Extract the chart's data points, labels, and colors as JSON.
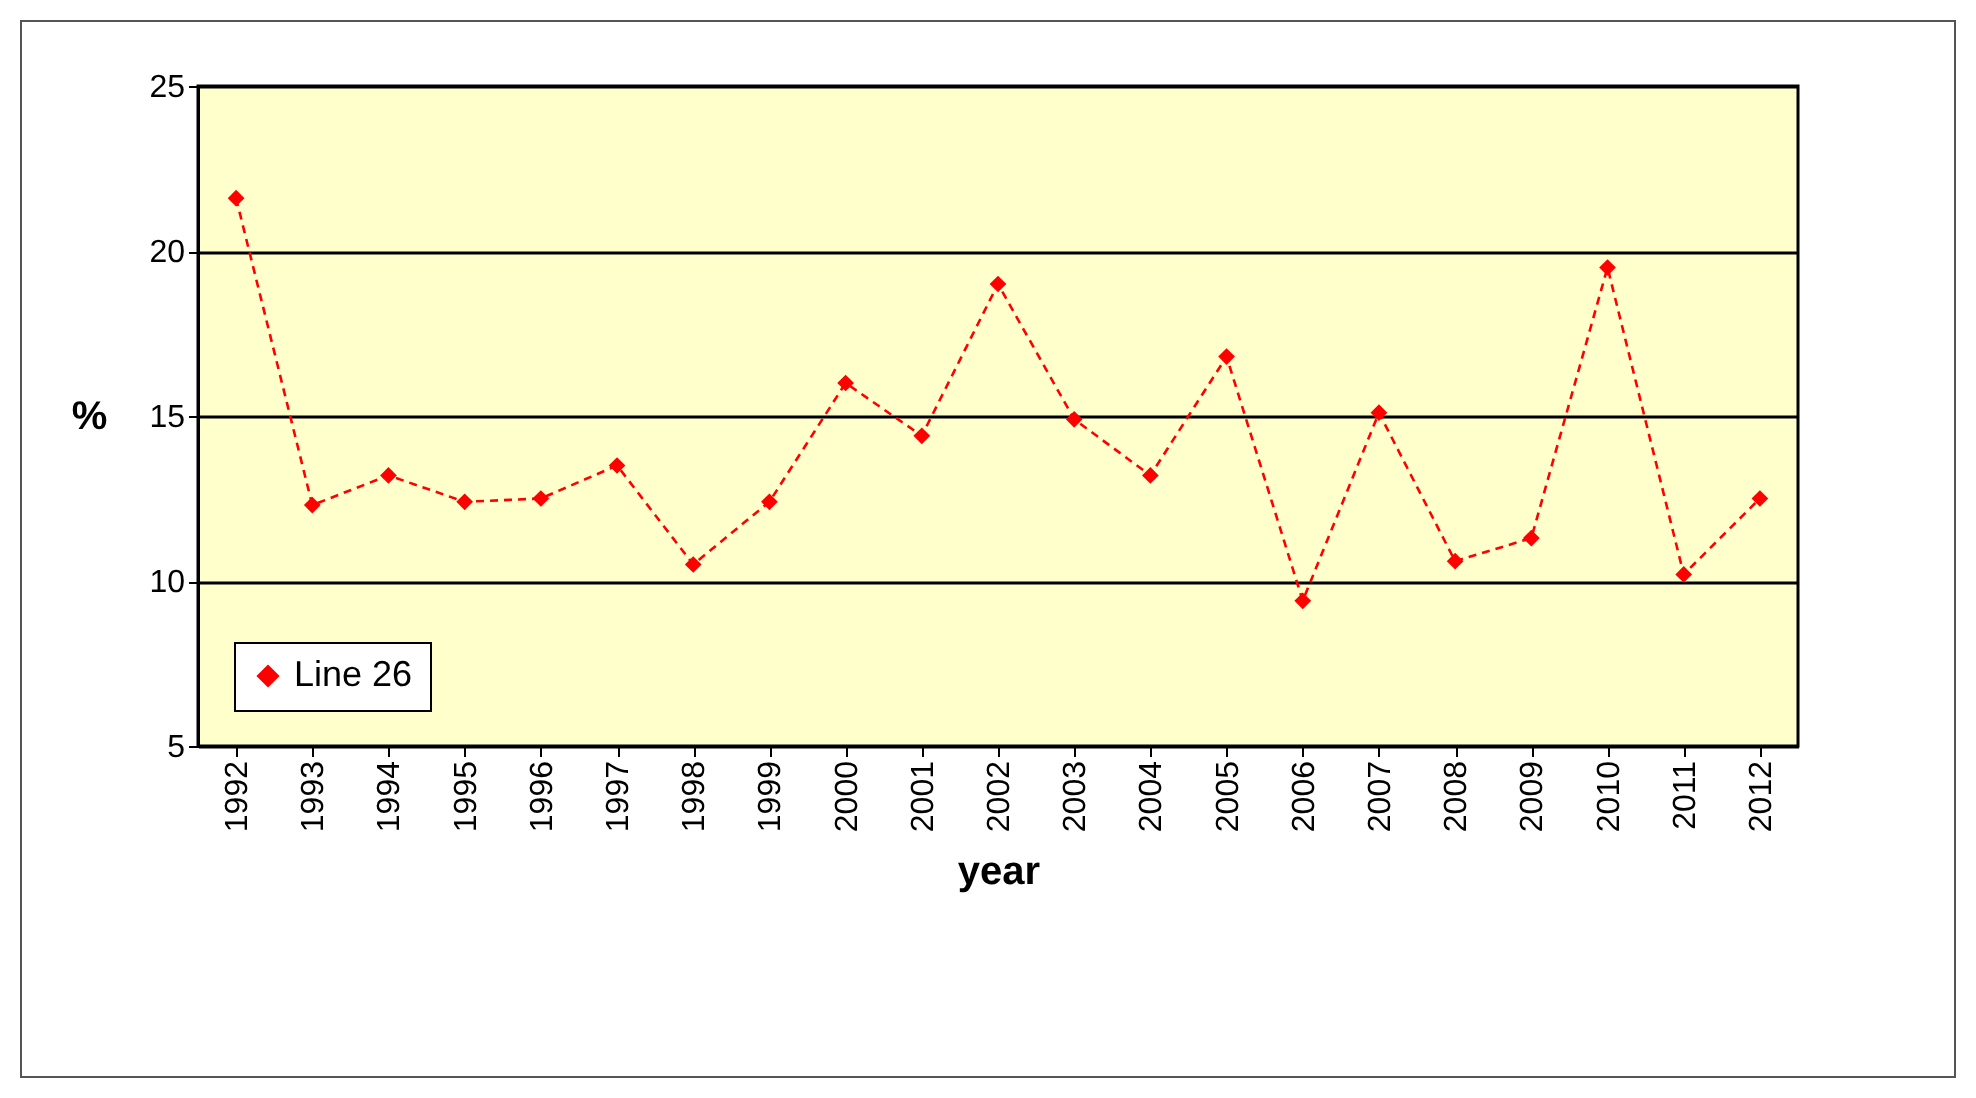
{
  "chart_data": {
    "type": "line",
    "xlabel": "year",
    "ylabel": "%",
    "categories": [
      "1992",
      "1993",
      "1994",
      "1995",
      "1996",
      "1997",
      "1998",
      "1999",
      "2000",
      "2001",
      "2002",
      "2003",
      "2004",
      "2005",
      "2006",
      "2007",
      "2008",
      "2009",
      "2010",
      "2011",
      "2012"
    ],
    "series": [
      {
        "name": "Line 26",
        "color": "#ff0000",
        "values": [
          21.6,
          12.3,
          13.2,
          12.4,
          12.5,
          13.5,
          10.5,
          12.4,
          16.0,
          14.4,
          19.0,
          14.9,
          13.2,
          16.8,
          9.4,
          15.1,
          10.6,
          11.3,
          19.5,
          10.2,
          12.5
        ]
      }
    ],
    "ylim": [
      5,
      25
    ],
    "yticks": [
      5,
      10,
      15,
      20,
      25
    ],
    "grid": "y",
    "legend": "bottom left",
    "marker": "diamond",
    "line_style": "dashed"
  }
}
